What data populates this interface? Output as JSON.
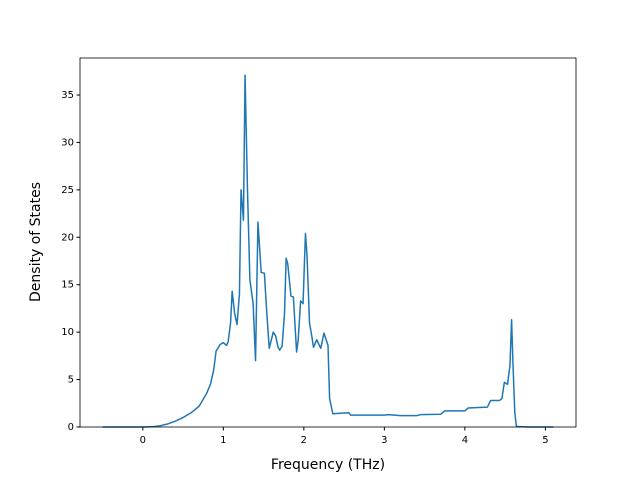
{
  "chart_data": {
    "type": "line",
    "xlabel": "Frequency (THz)",
    "ylabel": "Density of States",
    "series": [
      {
        "color": "#1f77b4",
        "x": [
          -0.5,
          -0.3,
          0,
          0.1,
          0.2,
          0.3,
          0.4,
          0.5,
          0.6,
          0.7,
          0.79,
          0.84,
          0.88,
          0.91,
          0.96,
          1.0,
          1.04,
          1.06,
          1.09,
          1.11,
          1.14,
          1.17,
          1.2,
          1.22,
          1.25,
          1.27,
          1.3,
          1.33,
          1.37,
          1.4,
          1.43,
          1.47,
          1.51,
          1.54,
          1.57,
          1.62,
          1.65,
          1.68,
          1.7,
          1.73,
          1.76,
          1.78,
          1.8,
          1.84,
          1.87,
          1.91,
          1.93,
          1.96,
          1.99,
          2.02,
          2.04,
          2.07,
          2.1,
          2.12,
          2.16,
          2.21,
          2.25,
          2.3,
          2.32,
          2.36,
          2.45,
          2.56,
          2.58,
          3.0,
          3.05,
          3.2,
          3.4,
          3.45,
          3.7,
          3.75,
          4.0,
          4.04,
          4.28,
          4.32,
          4.43,
          4.46,
          4.49,
          4.53,
          4.56,
          4.58,
          4.6,
          4.62,
          4.64,
          4.8,
          5.1
        ],
        "values": [
          0,
          0,
          0,
          0.02,
          0.1,
          0.3,
          0.6,
          1.0,
          1.5,
          2.2,
          3.5,
          4.5,
          6.0,
          8.0,
          8.7,
          8.9,
          8.6,
          9.0,
          11,
          14.3,
          12,
          10.8,
          14,
          25,
          21.8,
          37.1,
          25,
          15.5,
          13,
          7,
          21.6,
          16.3,
          16.2,
          12,
          8.3,
          10,
          9.6,
          8.4,
          8.1,
          8.5,
          12,
          17.8,
          17.2,
          13.8,
          13.7,
          7.9,
          9.2,
          13.3,
          13.0,
          20.4,
          18,
          11,
          9.5,
          8.4,
          9.2,
          8.3,
          9.9,
          8.6,
          3.0,
          1.4,
          1.45,
          1.5,
          1.25,
          1.25,
          1.3,
          1.2,
          1.2,
          1.3,
          1.35,
          1.7,
          1.7,
          2.0,
          2.1,
          2.8,
          2.8,
          3.0,
          4.7,
          4.5,
          6.5,
          11.3,
          6,
          1.5,
          0.05,
          0,
          0
        ]
      }
    ],
    "xlim": [
      -0.78,
      5.38
    ],
    "ylim": [
      0,
      38.9
    ],
    "xticks": [
      0,
      1,
      2,
      3,
      4,
      5
    ],
    "yticks": [
      0,
      5,
      10,
      15,
      20,
      25,
      30,
      35
    ],
    "grid": false
  }
}
